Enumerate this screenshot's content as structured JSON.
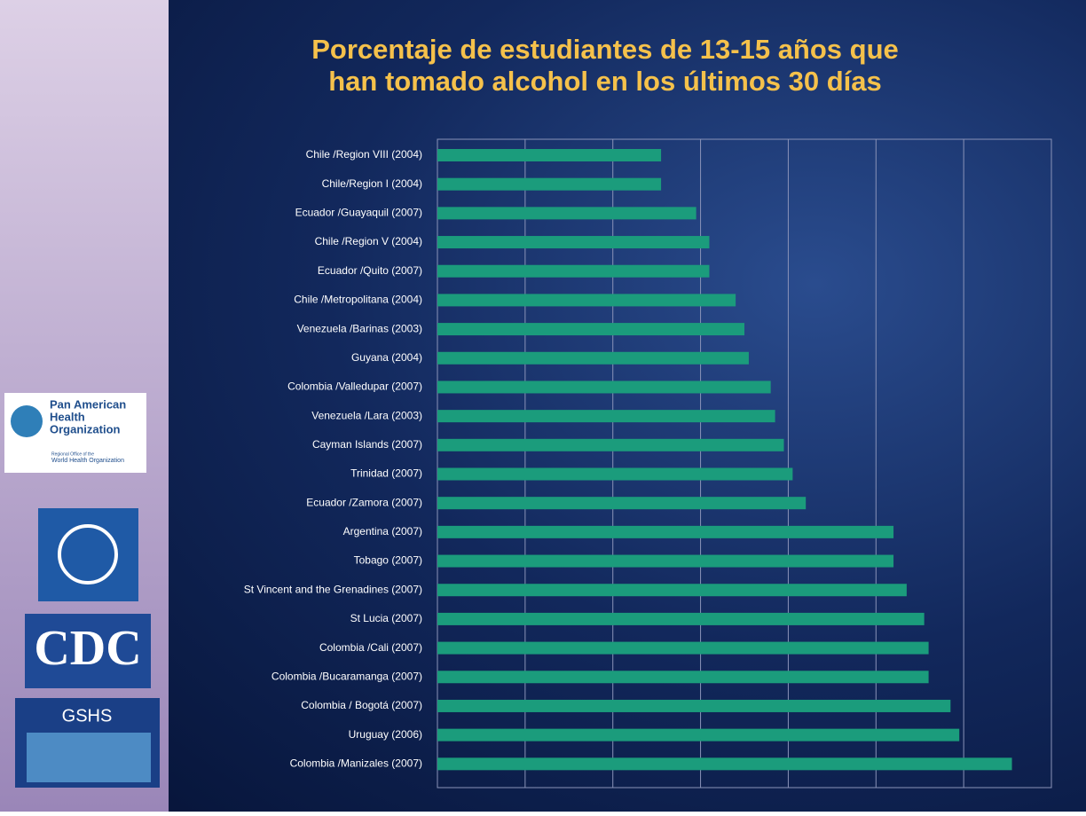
{
  "chart_data": {
    "type": "barh",
    "title": [
      "Porcentaje de estudiantes de 13-15 años que",
      "han tomado alcohol en los últimos 30 días"
    ],
    "categories": [
      "Chile /Region VIII (2004)",
      "Chile/Region I (2004)",
      "Ecuador /Guayaquil (2007)",
      "Chile /Region V (2004)",
      "Ecuador /Quito (2007)",
      "Chile /Metropolitana (2004)",
      "Venezuela /Barinas (2003)",
      "Guyana (2004)",
      "Colombia /Valledupar (2007)",
      "Venezuela /Lara (2003)",
      "Cayman Islands (2007)",
      "Trinidad (2007)",
      "Ecuador /Zamora (2007)",
      "Argentina (2007)",
      "Tobago (2007)",
      "St Vincent and the Grenadines (2007)",
      "St Lucia (2007)",
      "Colombia /Cali (2007)",
      "Colombia /Bucaramanga (2007)",
      "Colombia / Bogotá (2007)",
      "Uruguay (2006)",
      "Colombia /Manizales (2007)"
    ],
    "values": [
      25.5,
      25.5,
      29.5,
      31,
      31,
      34,
      35,
      35.5,
      38,
      38.5,
      39.5,
      40.5,
      42,
      52,
      52,
      53.5,
      55.5,
      56,
      56,
      58.5,
      59.5,
      65.5
    ],
    "color": "#1b9c7c",
    "xlim": [
      0,
      70
    ],
    "xticks": [
      0,
      10,
      20,
      30,
      40,
      50,
      60,
      70
    ],
    "grid": true
  },
  "sidebar": {
    "paho": [
      "Pan American",
      "Health",
      "Organization"
    ],
    "paho_sub": [
      "Regional Office of the",
      "World Health Organization"
    ],
    "cdc": "CDC",
    "gshs": "GSHS"
  }
}
